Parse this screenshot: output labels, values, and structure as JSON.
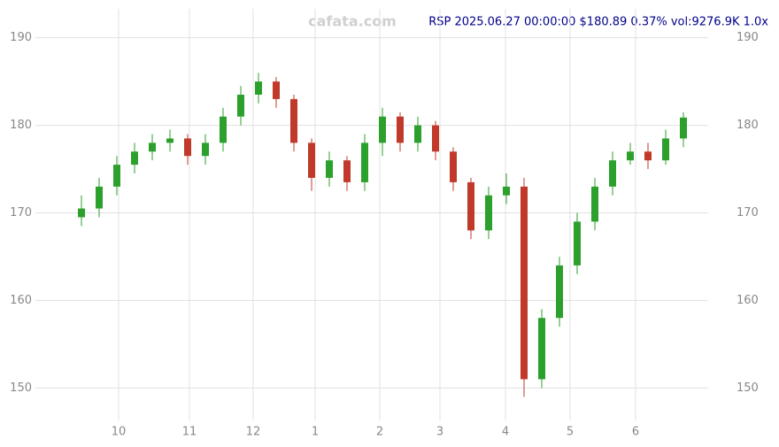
{
  "chart_data": {
    "type": "candlestick",
    "title": "RSP 2025.06.27 00:00:00 $180.89 0.37% vol:9276.9K 1.0x",
    "watermark": "cafata.com",
    "x": [
      1,
      3,
      5,
      7,
      9,
      11,
      13,
      15,
      17,
      19,
      21,
      23,
      25,
      27,
      29,
      31,
      33,
      35,
      37,
      39,
      41,
      43,
      45,
      47,
      49,
      51,
      53,
      55,
      57,
      59,
      61,
      63,
      65,
      67,
      69
    ],
    "open": [
      169.5,
      170.5,
      173,
      175.5,
      177,
      178,
      178.5,
      176.5,
      178,
      181,
      183.5,
      185,
      183,
      178,
      174,
      176,
      173.5,
      178,
      181,
      178,
      180,
      177,
      173.5,
      168,
      172,
      173,
      151,
      158,
      164,
      169,
      173,
      176,
      177,
      176,
      178.5
    ],
    "high": [
      172,
      174,
      176.5,
      178,
      179,
      179.5,
      179,
      179,
      182,
      184.5,
      186,
      185.5,
      183.5,
      178.5,
      177,
      176.5,
      179,
      182,
      181.5,
      181,
      180.5,
      177.5,
      174,
      173,
      174.5,
      174,
      159,
      165,
      170,
      174,
      177,
      178,
      178,
      179.5,
      181.5
    ],
    "low": [
      168.5,
      169.5,
      172,
      174.5,
      176,
      177,
      175.5,
      175.5,
      177,
      180,
      182.5,
      182,
      177,
      172.5,
      173,
      172.5,
      172.5,
      176.5,
      177,
      177,
      176,
      172.5,
      167,
      167,
      171,
      149,
      150,
      157,
      163,
      168,
      172,
      175.5,
      175,
      175.5,
      177.5
    ],
    "close": [
      170.5,
      173,
      175.5,
      177,
      178,
      178.5,
      176.5,
      178,
      181,
      183.5,
      185,
      183,
      178,
      174,
      176,
      173.5,
      178,
      181,
      178,
      180,
      177,
      173.5,
      168,
      172,
      173,
      151,
      158,
      164,
      169,
      173,
      176,
      177,
      176,
      178.5,
      180.89
    ],
    "up_color": "#2ca02c",
    "down_color": "#c0392b",
    "xlim": [
      0,
      70
    ],
    "xticks": [
      {
        "value": 5.2,
        "label": "10"
      },
      {
        "value": 13.2,
        "label": "11"
      },
      {
        "value": 20.4,
        "label": "12"
      },
      {
        "value": 27.4,
        "label": "1"
      },
      {
        "value": 34.7,
        "label": "2"
      },
      {
        "value": 41.5,
        "label": "3"
      },
      {
        "value": 48.9,
        "label": "4"
      },
      {
        "value": 56.2,
        "label": "5"
      },
      {
        "value": 63.6,
        "label": "6"
      }
    ],
    "ylim": [
      147,
      193
    ],
    "yticks": [
      150,
      160,
      170,
      180,
      190
    ],
    "grid": true
  }
}
